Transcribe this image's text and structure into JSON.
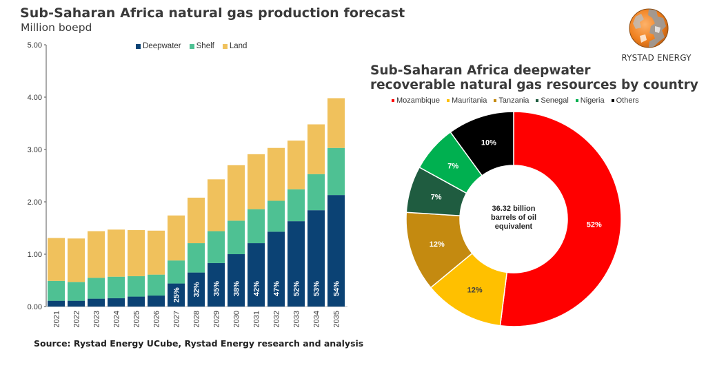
{
  "left_chart_title": "Sub-Saharan Africa natural gas production forecast",
  "left_chart_subtitle": "Million boepd",
  "right_chart_title_line1": "Sub-Saharan Africa deepwater",
  "right_chart_title_line2": "recoverable natural gas resources by country",
  "source": "Source: Rystad Energy UCube, Rystad Energy research and analysis",
  "logo": {
    "icon": "rystad-globe-icon",
    "text": "RYSTAD ENERGY"
  },
  "chart_data": [
    {
      "type": "bar",
      "stacked": true,
      "title": "Sub-Saharan Africa natural gas production forecast",
      "ylabel": "Million boepd",
      "xlabel": "",
      "ylim": [
        0,
        5
      ],
      "yticks": [
        "0.00",
        "1.00",
        "2.00",
        "3.00",
        "4.00",
        "5.00"
      ],
      "grid": false,
      "legend_position": "top",
      "categories": [
        "2021",
        "2022",
        "2023",
        "2024",
        "2025",
        "2026",
        "2027",
        "2028",
        "2029",
        "2030",
        "2031",
        "2032",
        "2033",
        "2034",
        "2035"
      ],
      "series": [
        {
          "name": "Deepwater",
          "color": "#0B4274",
          "values": [
            0.11,
            0.11,
            0.15,
            0.16,
            0.19,
            0.21,
            0.44,
            0.65,
            0.83,
            1.0,
            1.21,
            1.43,
            1.63,
            1.84,
            2.13
          ]
        },
        {
          "name": "Shelf",
          "color": "#4EC193",
          "values": [
            0.38,
            0.36,
            0.4,
            0.41,
            0.39,
            0.4,
            0.44,
            0.56,
            0.61,
            0.64,
            0.65,
            0.59,
            0.61,
            0.69,
            0.9
          ]
        },
        {
          "name": "Land",
          "color": "#F0C15C",
          "values": [
            0.82,
            0.83,
            0.89,
            0.9,
            0.88,
            0.84,
            0.86,
            0.87,
            0.99,
            1.06,
            1.05,
            1.01,
            0.93,
            0.95,
            0.95
          ]
        }
      ],
      "data_labels": [
        "",
        "",
        "",
        "",
        "",
        "",
        "25%",
        "32%",
        "35%",
        "38%",
        "42%",
        "47%",
        "52%",
        "53%",
        "54%"
      ]
    },
    {
      "type": "pie",
      "donut": true,
      "title": "Sub-Saharan Africa deepwater recoverable natural gas resources by country",
      "center_label": [
        "36.32 billion",
        "barrels of oil",
        "equivalent"
      ],
      "legend_position": "top",
      "slices": [
        {
          "label": "Mozambique",
          "value": 52,
          "display": "52%",
          "color": "#FF0000",
          "text_color": "#ffffff"
        },
        {
          "label": "Mauritania",
          "value": 12,
          "display": "12%",
          "color": "#FFC000",
          "text_color": "#404040"
        },
        {
          "label": "Tanzania",
          "value": 12,
          "display": "12%",
          "color": "#C48A10",
          "text_color": "#ffffff"
        },
        {
          "label": "Senegal",
          "value": 7,
          "display": "7%",
          "color": "#1F5C40",
          "text_color": "#ffffff"
        },
        {
          "label": "Nigeria",
          "value": 7,
          "display": "7%",
          "color": "#00B050",
          "text_color": "#ffffff"
        },
        {
          "label": "Others",
          "value": 10,
          "display": "10%",
          "color": "#000000",
          "text_color": "#ffffff"
        }
      ]
    }
  ]
}
